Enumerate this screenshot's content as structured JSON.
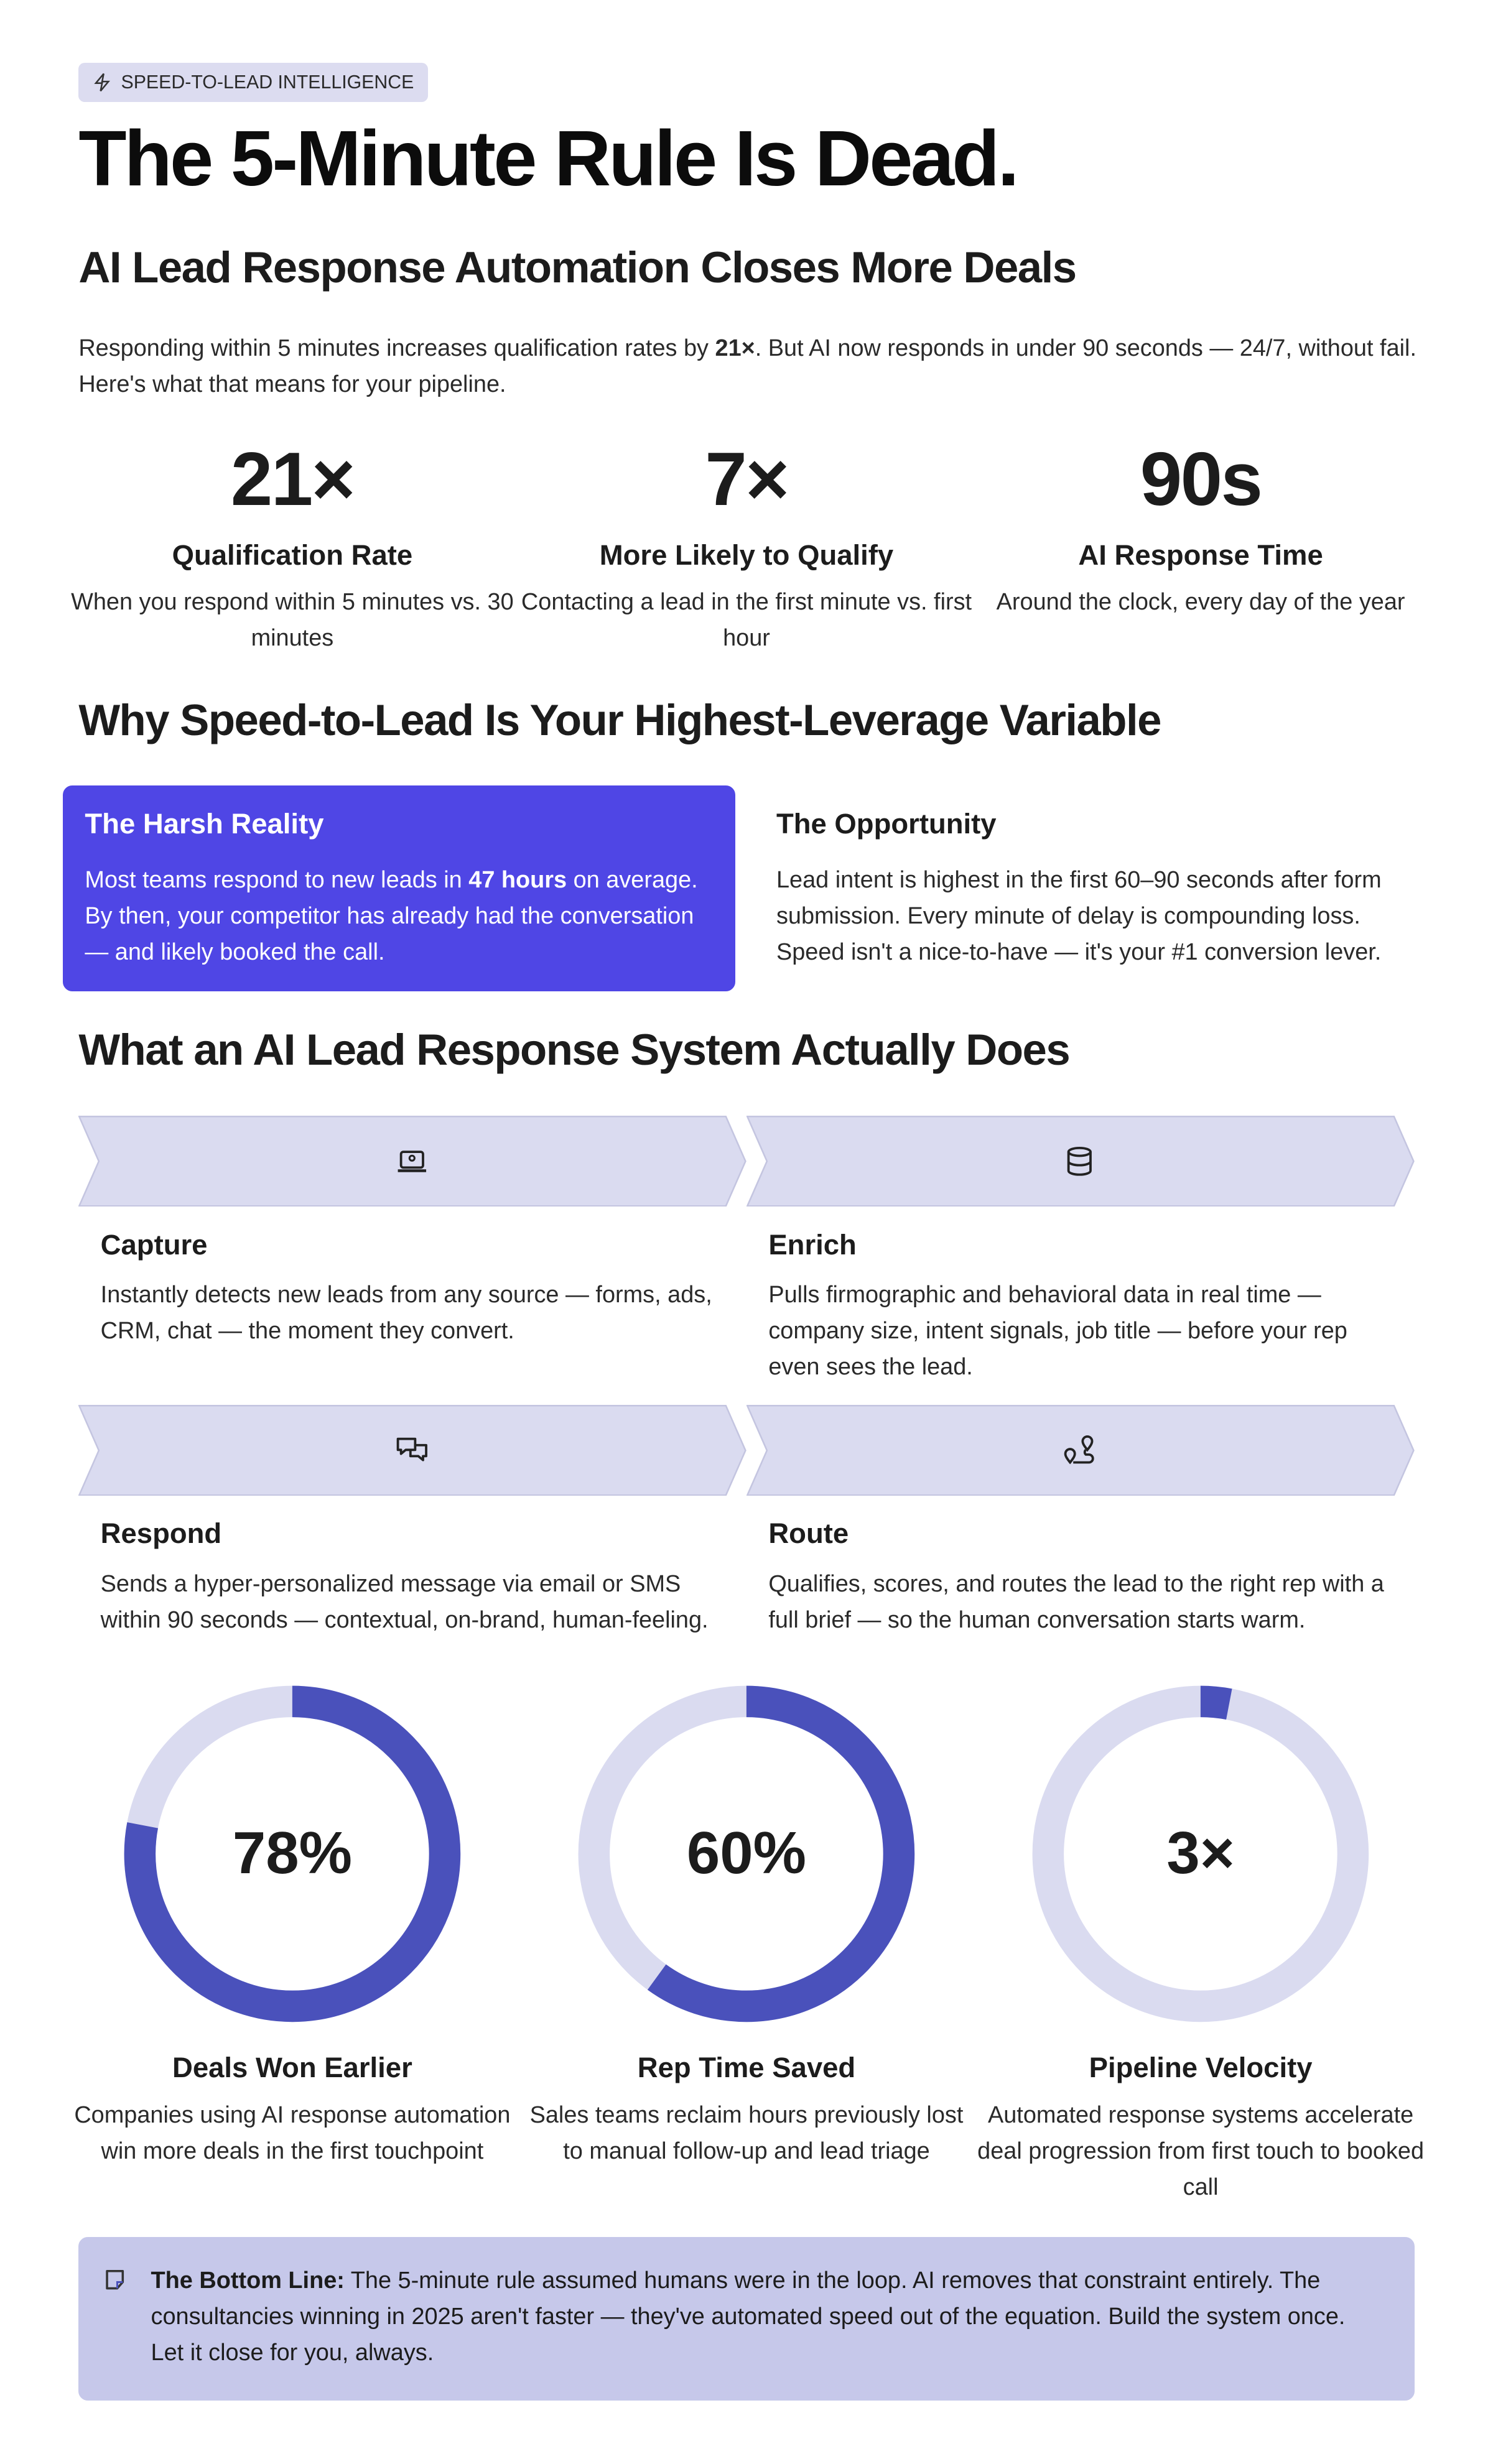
{
  "badge": {
    "label": "SPEED-TO-LEAD INTELLIGENCE",
    "icon": "lightning-icon"
  },
  "title": "The 5-Minute Rule Is Dead.",
  "subtitle": "AI Lead Response Automation Closes More Deals",
  "intro": {
    "pre": "Responding within 5 minutes increases qualification rates by ",
    "bold": "21×",
    "post": ". But AI now responds in under 90 seconds — 24/7, without fail. Here's what that means for your pipeline."
  },
  "stats": [
    {
      "value": "21×",
      "label": "Qualification Rate",
      "desc": "When you respond within 5 minutes vs. 30 minutes"
    },
    {
      "value": "7×",
      "label": "More Likely to Qualify",
      "desc": "Contacting a lead in the first minute vs. first hour"
    },
    {
      "value": "90s",
      "label": "AI Response Time",
      "desc": "Around the clock, every day of the year"
    }
  ],
  "why": {
    "heading": "Why Speed-to-Lead Is Your Highest-Leverage Variable",
    "reality": {
      "title": "The Harsh Reality",
      "pre": "Most teams respond to new leads in ",
      "bold": "47 hours",
      "post": " on average. By then, your competitor has already had the conversation — and likely booked the call."
    },
    "opportunity": {
      "title": "The Opportunity",
      "text": "Lead intent is highest in the first 60–90 seconds after form submission. Every minute of delay is compounding loss. Speed isn't a nice-to-have — it's your #1 conversion lever."
    }
  },
  "system": {
    "heading": "What an AI Lead Response System Actually Does",
    "steps": [
      {
        "title": "Capture",
        "icon": "laptop-icon",
        "desc": "Instantly detects new leads from any source — forms, ads, CRM, chat — the moment they convert."
      },
      {
        "title": "Enrich",
        "icon": "database-icon",
        "desc": "Pulls firmographic and behavioral data in real time — company size, intent signals, job title — before your rep even sees the lead."
      },
      {
        "title": "Respond",
        "icon": "chat-bubbles-icon",
        "desc": "Sends a hyper-personalized message via email or SMS within 90 seconds — contextual, on-brand, human-feeling."
      },
      {
        "title": "Route",
        "icon": "route-pins-icon",
        "desc": "Qualifies, scores, and routes the lead to the right rep with a full brief — so the human conversation starts warm."
      }
    ]
  },
  "rings": [
    {
      "value": "78%",
      "fill": 0.78,
      "label": "Deals Won Earlier",
      "desc": "Companies using AI response automation win more deals in the first touchpoint"
    },
    {
      "value": "60%",
      "fill": 0.6,
      "label": "Rep Time Saved",
      "desc": "Sales teams reclaim hours previously lost to manual follow-up and lead triage"
    },
    {
      "value": "3×",
      "fill": 0.03,
      "label": "Pipeline Velocity",
      "desc": "Automated response systems accelerate deal progression from first touch to booked call"
    }
  ],
  "bottom_line": {
    "icon": "note-icon",
    "label": "The Bottom Line:",
    "text": " The 5-minute rule assumed humans were in the loop. AI removes that constraint entirely. The consultancies winning in 2025 aren't faster — they've automated speed out of the equation. Build the system once. Let it close for you, always."
  },
  "colors": {
    "accent": "#4f46e5",
    "ring_fill": "#4a51bb",
    "ring_track": "#dadbf0",
    "chevron": "#dadbf0",
    "callout": "#c6c8ea"
  }
}
